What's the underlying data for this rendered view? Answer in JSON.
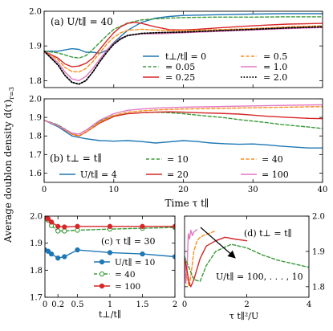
{
  "figure": {
    "shared_ylabel": "Average doublon density d(τ)",
    "shared_ylabel_sub": "r=3",
    "shared_xlabel": "Time τ t∥"
  },
  "chart_data": [
    {
      "panel": "a",
      "type": "line",
      "annotation": "(a) U/t∥ = 40",
      "xlim": [
        0,
        40
      ],
      "ylim": [
        1.78,
        2.0
      ],
      "xticks": [
        0,
        10,
        20,
        30,
        40
      ],
      "xticklabels_shown": false,
      "yticks": [
        1.8,
        1.9,
        2.0
      ],
      "yticklabels": [
        "1.8",
        "1.9",
        "2.0"
      ],
      "legend_title": "t⊥/t∥ = 0",
      "legend_placement": "bottom-right",
      "series": [
        {
          "name": "t⊥/t∥ = 0",
          "color": "#1f77b4",
          "style": "solid",
          "x": [
            0,
            2,
            4,
            5,
            6,
            7,
            8,
            9,
            10,
            12,
            14,
            16,
            18,
            20,
            25,
            30,
            35,
            40
          ],
          "y": [
            1.885,
            1.885,
            1.892,
            1.89,
            1.882,
            1.882,
            1.879,
            1.888,
            1.91,
            1.945,
            1.968,
            1.98,
            1.985,
            1.988,
            1.99,
            1.992,
            1.993,
            1.993
          ]
        },
        {
          "name": "= 0.05",
          "color": "#3a9a3a",
          "style": "dashed",
          "x": [
            0,
            2,
            4,
            5,
            6,
            7,
            8,
            9,
            10,
            12,
            14,
            16,
            18,
            20,
            25,
            30,
            35,
            40
          ],
          "y": [
            1.885,
            1.88,
            1.868,
            1.865,
            1.872,
            1.89,
            1.91,
            1.93,
            1.948,
            1.966,
            1.975,
            1.978,
            1.98,
            1.982,
            1.983,
            1.983,
            1.984,
            1.984
          ]
        },
        {
          "name": "= 0.25",
          "color": "#d62728",
          "style": "solid",
          "x": [
            0,
            2,
            3,
            4,
            5,
            6,
            7,
            8,
            9,
            10,
            11,
            12,
            13,
            14,
            16,
            18,
            20,
            22,
            25,
            30,
            35,
            40
          ],
          "y": [
            1.885,
            1.865,
            1.848,
            1.84,
            1.842,
            1.85,
            1.865,
            1.89,
            1.915,
            1.938,
            1.955,
            1.965,
            1.968,
            1.965,
            1.955,
            1.947,
            1.946,
            1.948,
            1.952,
            1.958,
            1.963,
            1.965
          ]
        },
        {
          "name": "= 0.5",
          "color": "#ff8c1a",
          "style": "dashed",
          "x": [
            0,
            2,
            3,
            4,
            5,
            6,
            7,
            8,
            9,
            10,
            11,
            12,
            14,
            16,
            18,
            20,
            25,
            30,
            35,
            40
          ],
          "y": [
            1.885,
            1.86,
            1.838,
            1.826,
            1.825,
            1.835,
            1.855,
            1.88,
            1.905,
            1.925,
            1.938,
            1.945,
            1.948,
            1.946,
            1.944,
            1.944,
            1.947,
            1.95,
            1.955,
            1.958
          ]
        },
        {
          "name": "= 1.0",
          "color": "#e377c2",
          "style": "solid",
          "x": [
            0,
            2,
            3,
            4,
            5,
            6,
            7,
            8,
            9,
            10,
            11,
            12,
            14,
            16,
            18,
            20,
            25,
            30,
            35,
            40
          ],
          "y": [
            1.885,
            1.852,
            1.825,
            1.805,
            1.8,
            1.812,
            1.835,
            1.862,
            1.888,
            1.908,
            1.922,
            1.93,
            1.935,
            1.935,
            1.936,
            1.938,
            1.942,
            1.946,
            1.95,
            1.953
          ]
        },
        {
          "name": "= 2.0",
          "color": "#000000",
          "style": "dotted",
          "x": [
            0,
            2,
            3,
            4,
            5,
            6,
            7,
            8,
            9,
            10,
            11,
            12,
            14,
            16,
            18,
            20,
            25,
            30,
            35,
            40
          ],
          "y": [
            1.885,
            1.845,
            1.815,
            1.795,
            1.79,
            1.8,
            1.825,
            1.855,
            1.882,
            1.905,
            1.92,
            1.93,
            1.936,
            1.938,
            1.939,
            1.94,
            1.944,
            1.948,
            1.952,
            1.955
          ]
        }
      ]
    },
    {
      "panel": "b",
      "type": "line",
      "annotation": "(b) t⊥ = t∥",
      "xlim": [
        0,
        40
      ],
      "ylim": [
        1.55,
        2.0
      ],
      "xticks": [
        0,
        10,
        20,
        30,
        40
      ],
      "xticklabels": [
        "0",
        "10",
        "20",
        "30",
        "40"
      ],
      "yticks": [
        1.6,
        1.7,
        1.8,
        1.9,
        2.0
      ],
      "yticklabels": [
        "1.6",
        "1.7",
        "1.8",
        "1.9",
        "2.0"
      ],
      "legend_title": "U/t∥ = 4",
      "legend_placement": "bottom-right",
      "series": [
        {
          "name": "U/t∥ = 4",
          "color": "#1f77b4",
          "style": "solid",
          "x": [
            0,
            2,
            4,
            6,
            8,
            10,
            12,
            14,
            16,
            18,
            20,
            22,
            24,
            26,
            28,
            30,
            32,
            34,
            36,
            38,
            40
          ],
          "y": [
            1.885,
            1.85,
            1.8,
            1.785,
            1.775,
            1.772,
            1.775,
            1.77,
            1.762,
            1.768,
            1.775,
            1.77,
            1.762,
            1.758,
            1.755,
            1.757,
            1.752,
            1.745,
            1.74,
            1.735,
            1.735
          ]
        },
        {
          "name": "= 10",
          "color": "#3a9a3a",
          "style": "dashed",
          "x": [
            0,
            2,
            4,
            5,
            6,
            8,
            10,
            12,
            14,
            16,
            18,
            20,
            22,
            24,
            26,
            28,
            30,
            32,
            34,
            36,
            38,
            40
          ],
          "y": [
            1.885,
            1.86,
            1.815,
            1.81,
            1.83,
            1.88,
            1.91,
            1.92,
            1.925,
            1.928,
            1.925,
            1.92,
            1.912,
            1.905,
            1.898,
            1.888,
            1.88,
            1.872,
            1.862,
            1.855,
            1.848,
            1.84
          ]
        },
        {
          "name": "= 20",
          "color": "#d62728",
          "style": "solid",
          "x": [
            0,
            2,
            4,
            5,
            6,
            8,
            10,
            12,
            14,
            16,
            18,
            20,
            22,
            25,
            28,
            30,
            32,
            35,
            38,
            40
          ],
          "y": [
            1.885,
            1.855,
            1.81,
            1.8,
            1.82,
            1.87,
            1.905,
            1.92,
            1.925,
            1.928,
            1.93,
            1.928,
            1.925,
            1.922,
            1.918,
            1.912,
            1.906,
            1.9,
            1.895,
            1.893
          ]
        },
        {
          "name": "= 40",
          "color": "#ff8c1a",
          "style": "dashed",
          "x": [
            0,
            2,
            4,
            5,
            6,
            8,
            10,
            12,
            14,
            16,
            20,
            25,
            30,
            35,
            40
          ],
          "y": [
            1.885,
            1.855,
            1.81,
            1.8,
            1.82,
            1.875,
            1.91,
            1.928,
            1.935,
            1.94,
            1.945,
            1.948,
            1.952,
            1.955,
            1.958
          ]
        },
        {
          "name": "= 100",
          "color": "#e377c2",
          "style": "solid",
          "x": [
            0,
            2,
            4,
            5,
            6,
            8,
            10,
            12,
            14,
            16,
            20,
            25,
            30,
            35,
            40
          ],
          "y": [
            1.885,
            1.855,
            1.815,
            1.81,
            1.83,
            1.885,
            1.92,
            1.938,
            1.945,
            1.95,
            1.955,
            1.958,
            1.962,
            1.965,
            1.968
          ]
        }
      ]
    },
    {
      "panel": "c",
      "type": "line",
      "annotation": "(c) τ t∥ = 30",
      "xlabel": "t⊥/t∥",
      "xlim": [
        0,
        2
      ],
      "ylim": [
        1.7,
        2.0
      ],
      "xticks": [
        0,
        0.2,
        0.5,
        1,
        1.5,
        2
      ],
      "xticklabels": [
        "0",
        "0.2",
        "0.5",
        "1",
        "1.5",
        "2"
      ],
      "yticks": [
        1.7,
        1.8,
        1.9,
        2.0
      ],
      "yticklabels": [
        "1.7",
        "1.8",
        "1.9",
        "2.0"
      ],
      "legend_title": "U/t∥ = 10",
      "legend_placement": "bottom-right",
      "series": [
        {
          "name": "U/t∥ = 10",
          "color": "#1f77b4",
          "style": "solid",
          "marker": "circle",
          "x": [
            0,
            0.05,
            0.1,
            0.2,
            0.3,
            0.5,
            1,
            1.5,
            2
          ],
          "y": [
            1.875,
            1.87,
            1.86,
            1.845,
            1.85,
            1.875,
            1.865,
            1.86,
            1.85
          ]
        },
        {
          "name": "= 40",
          "color": "#3a9a3a",
          "style": "dashed",
          "marker": "circle-open",
          "x": [
            0,
            0.05,
            0.1,
            0.2,
            0.3,
            0.5,
            1,
            1.5,
            2
          ],
          "y": [
            1.99,
            1.985,
            1.965,
            1.945,
            1.945,
            1.948,
            1.952,
            1.955,
            1.958
          ]
        },
        {
          "name": "= 100",
          "color": "#d62728",
          "style": "solid",
          "marker": "circle",
          "x": [
            0,
            0.05,
            0.1,
            0.2,
            0.3,
            0.5,
            1,
            1.5,
            2
          ],
          "y": [
            1.995,
            1.99,
            1.978,
            1.962,
            1.96,
            1.962,
            1.962,
            1.962,
            1.962
          ]
        }
      ]
    },
    {
      "panel": "d",
      "type": "line",
      "annotation": "(d) t⊥ = t∥",
      "arrow_label": "U/t∥ = 100, . . . , 10",
      "xlabel": "τ t∥²/U",
      "xlim": [
        0,
        4
      ],
      "ylim": [
        1.77,
        2.0
      ],
      "xticks": [
        0,
        2,
        4
      ],
      "xticklabels": [
        "0",
        "2",
        "4"
      ],
      "yticks": [
        1.8,
        1.9,
        2.0
      ],
      "yticklabels": [
        "1.8",
        "1.9",
        "2.0"
      ],
      "yaxis_side": "right",
      "series": [
        {
          "name": "U/t∥ = 100",
          "color": "#e377c2",
          "style": "solid",
          "x": [
            0,
            0.04,
            0.08,
            0.12,
            0.16,
            0.2,
            0.25,
            0.3,
            0.35,
            0.4
          ],
          "y": [
            1.885,
            1.81,
            1.85,
            1.95,
            1.935,
            1.96,
            1.945,
            1.955,
            1.958,
            1.962
          ]
        },
        {
          "name": "U/t∥ = 40",
          "color": "#ff8c1a",
          "style": "dashed",
          "x": [
            0,
            0.1,
            0.15,
            0.2,
            0.3,
            0.4,
            0.5,
            0.6,
            0.75,
            1.0
          ],
          "y": [
            1.885,
            1.82,
            1.8,
            1.83,
            1.9,
            1.93,
            1.94,
            1.945,
            1.95,
            1.958
          ]
        },
        {
          "name": "U/t∥ = 20",
          "color": "#d62728",
          "style": "solid",
          "x": [
            0,
            0.15,
            0.2,
            0.3,
            0.5,
            0.7,
            1.0,
            1.3,
            1.6,
            2.0
          ],
          "y": [
            1.885,
            1.81,
            1.8,
            1.82,
            1.88,
            1.915,
            1.93,
            1.94,
            1.935,
            1.93
          ]
        },
        {
          "name": "U/t∥ = 10",
          "color": "#3a9a3a",
          "style": "dashed",
          "x": [
            0,
            0.3,
            0.5,
            0.7,
            1.0,
            1.5,
            2.0,
            2.5,
            3.0,
            3.5,
            4.0
          ],
          "y": [
            1.885,
            1.82,
            1.815,
            1.86,
            1.9,
            1.92,
            1.91,
            1.89,
            1.875,
            1.865,
            1.855
          ]
        }
      ]
    }
  ]
}
